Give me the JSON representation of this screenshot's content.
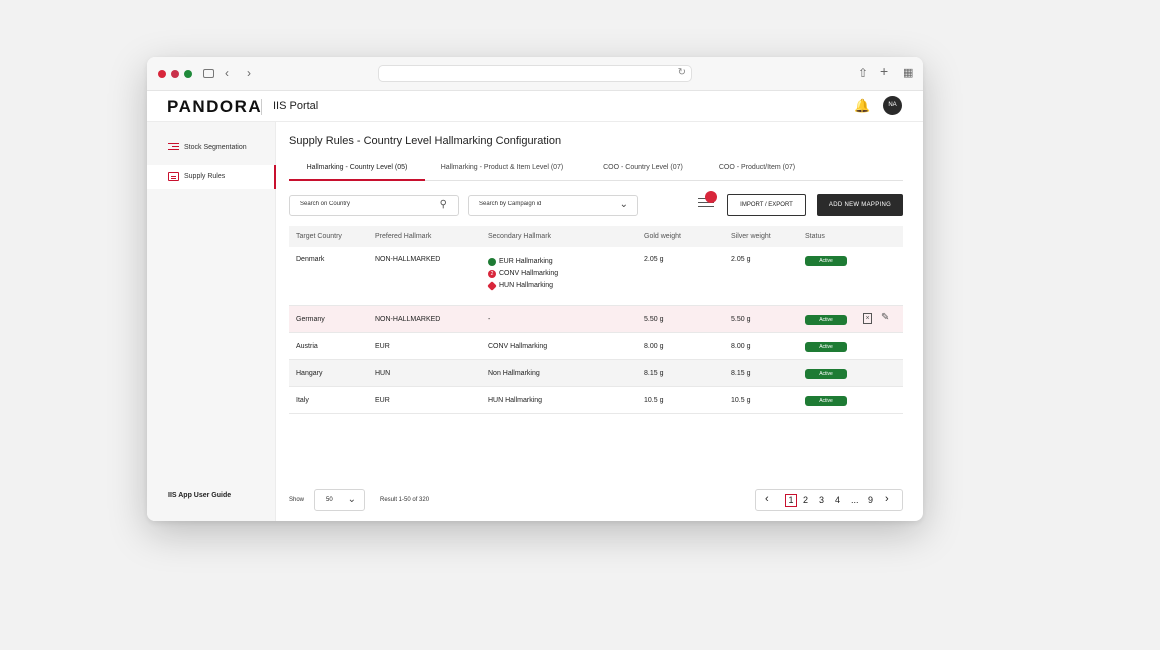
{
  "window_controls": [
    "close",
    "minimize",
    "zoom"
  ],
  "header": {
    "brand": "PANDORA",
    "portal": "IIS Portal",
    "avatar_initials": "NA"
  },
  "sidebar": {
    "items": [
      {
        "label": "Stock Segmentation",
        "icon": "list-icon"
      },
      {
        "label": "Supply Rules",
        "icon": "document-icon",
        "active": true
      }
    ],
    "guide": "IIS App User Guide"
  },
  "main": {
    "title": "Supply Rules - Country Level Hallmarking Configuration",
    "tabs": [
      {
        "label": "Hallmarking - Country Level (05)",
        "active": true
      },
      {
        "label": "Hallmarking - Product & Item Level (07)"
      },
      {
        "label": "COO - Country Level (07)"
      },
      {
        "label": "COO - Product/Item (07)"
      }
    ],
    "search_placeholder": "Search on Country",
    "campaign_placeholder": "Search by Campaign id",
    "import_label": "IMPORT / EXPORT",
    "add_label": "ADD NEW MAPPING"
  },
  "table": {
    "headers": [
      "Target Country",
      "Prefered Hallmark",
      "Secondary Hallmark",
      "Gold weight",
      "Silver weight",
      "Status"
    ],
    "rows": [
      {
        "country": "Denmark",
        "preferred": "NON-HALLMARKED",
        "secondary": [
          "EUR Hallmarking",
          "CONV Hallmarking",
          "HUN Hallmarking"
        ],
        "gold": "2.05 g",
        "silver": "2.05 g",
        "status": "Active"
      },
      {
        "country": "Germany",
        "preferred": "NON-HALLMARKED",
        "secondary": "-",
        "gold": "5.50 g",
        "silver": "5.50 g",
        "status": "Active"
      },
      {
        "country": "Austria",
        "preferred": "EUR",
        "secondary": "CONV Hallmarking",
        "gold": "8.00 g",
        "silver": "8.00 g",
        "status": "Active"
      },
      {
        "country": "Hangary",
        "preferred": "HUN",
        "secondary": "Non Hallmarking",
        "gold": "8.15 g",
        "silver": "8.15 g",
        "status": "Active"
      },
      {
        "country": "Italy",
        "preferred": "EUR",
        "secondary": "HUN Hallmarking",
        "gold": "10.5 g",
        "silver": "10.5 g",
        "status": "Active"
      }
    ]
  },
  "footer": {
    "show_label": "Show",
    "show_value": "50",
    "result": "Result 1-50 of 320",
    "pages": [
      "1",
      "2",
      "3",
      "4",
      "...",
      "9"
    ],
    "current_page": "1"
  },
  "colors": {
    "accent": "#c8102e",
    "active_badge": "#1e7b34",
    "dark_button": "#2b2b2b"
  }
}
